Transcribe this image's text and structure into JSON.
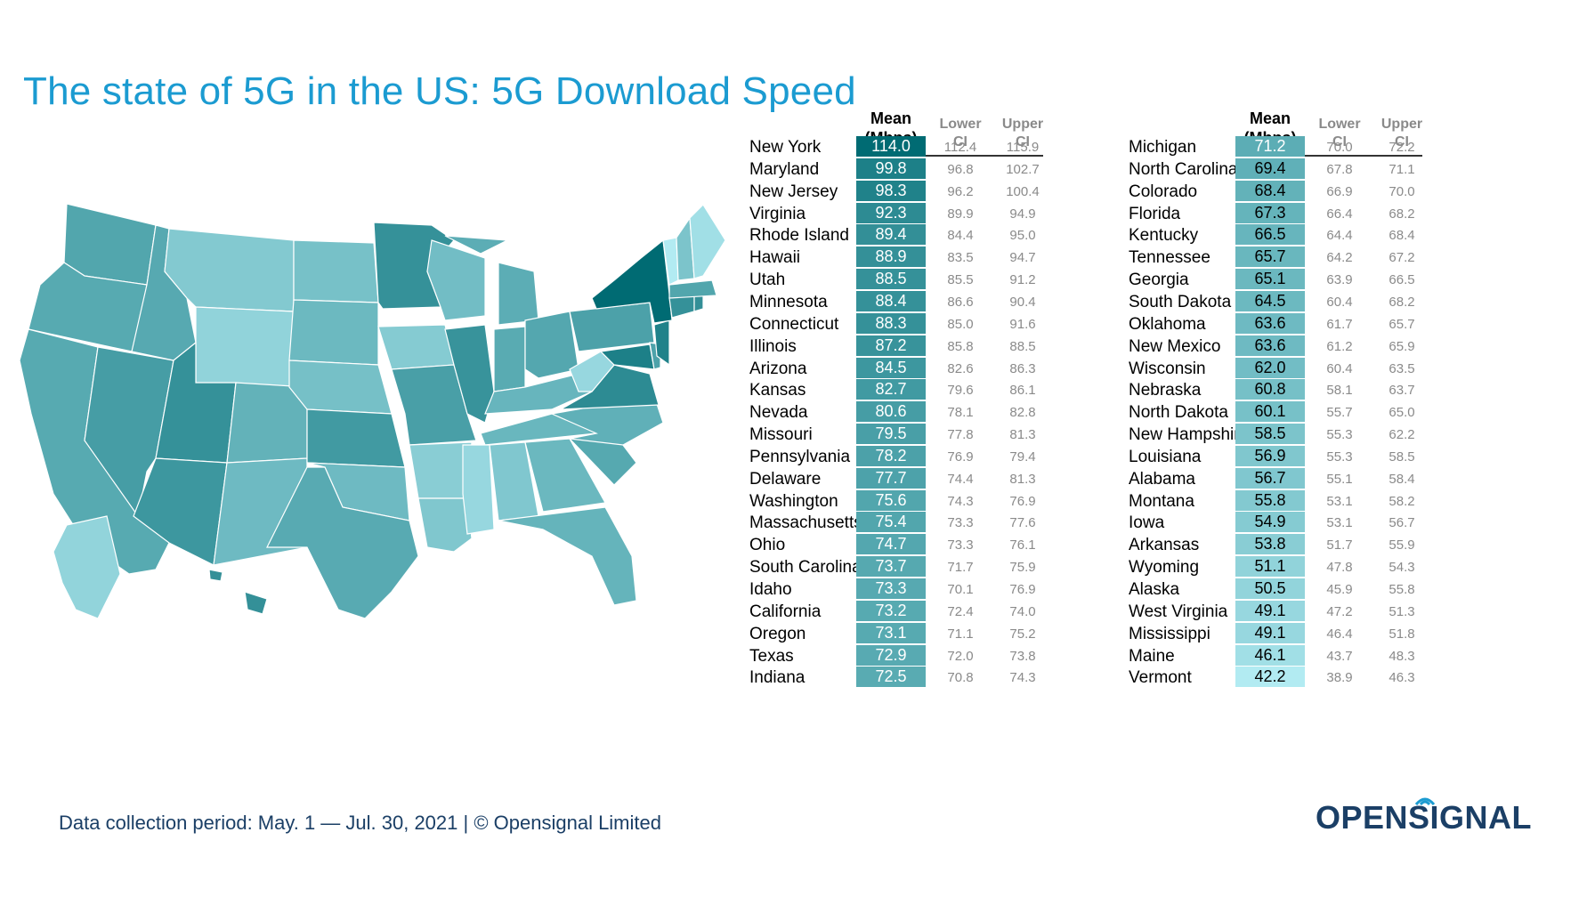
{
  "title": "The state of 5G in the US: 5G Download Speed",
  "footer": "Data collection period: May. 1 — Jul. 30, 2021 | © Opensignal Limited",
  "logo": "OPENSIGNAL",
  "headers": {
    "mean": [
      "Mean",
      "(Mbps)"
    ],
    "lower": [
      "Lower",
      "CI"
    ],
    "upper": [
      "Upper",
      "CI"
    ]
  },
  "color_scale": {
    "low": "#b2ebf2",
    "high": "#006b73",
    "text_light": "#ffffff",
    "text_dark": "#000000"
  },
  "chart_data": {
    "type": "table",
    "columns": [
      "State",
      "Mean (Mbps)",
      "Lower CI",
      "Upper CI"
    ],
    "rows": [
      {
        "state": "New York",
        "mean": "114.0",
        "lower": "112.4",
        "upper": "115.9"
      },
      {
        "state": "Maryland",
        "mean": "99.8",
        "lower": "96.8",
        "upper": "102.7"
      },
      {
        "state": "New Jersey",
        "mean": "98.3",
        "lower": "96.2",
        "upper": "100.4"
      },
      {
        "state": "Virginia",
        "mean": "92.3",
        "lower": "89.9",
        "upper": "94.9"
      },
      {
        "state": "Rhode Island",
        "mean": "89.4",
        "lower": "84.4",
        "upper": "95.0"
      },
      {
        "state": "Hawaii",
        "mean": "88.9",
        "lower": "83.5",
        "upper": "94.7"
      },
      {
        "state": "Utah",
        "mean": "88.5",
        "lower": "85.5",
        "upper": "91.2"
      },
      {
        "state": "Minnesota",
        "mean": "88.4",
        "lower": "86.6",
        "upper": "90.4"
      },
      {
        "state": "Connecticut",
        "mean": "88.3",
        "lower": "85.0",
        "upper": "91.6"
      },
      {
        "state": "Illinois",
        "mean": "87.2",
        "lower": "85.8",
        "upper": "88.5"
      },
      {
        "state": "Arizona",
        "mean": "84.5",
        "lower": "82.6",
        "upper": "86.3"
      },
      {
        "state": "Kansas",
        "mean": "82.7",
        "lower": "79.6",
        "upper": "86.1"
      },
      {
        "state": "Nevada",
        "mean": "80.6",
        "lower": "78.1",
        "upper": "82.8"
      },
      {
        "state": "Missouri",
        "mean": "79.5",
        "lower": "77.8",
        "upper": "81.3"
      },
      {
        "state": "Pennsylvania",
        "mean": "78.2",
        "lower": "76.9",
        "upper": "79.4"
      },
      {
        "state": "Delaware",
        "mean": "77.7",
        "lower": "74.4",
        "upper": "81.3"
      },
      {
        "state": "Washington",
        "mean": "75.6",
        "lower": "74.3",
        "upper": "76.9"
      },
      {
        "state": "Massachusetts",
        "mean": "75.4",
        "lower": "73.3",
        "upper": "77.6"
      },
      {
        "state": "Ohio",
        "mean": "74.7",
        "lower": "73.3",
        "upper": "76.1"
      },
      {
        "state": "South Carolina",
        "mean": "73.7",
        "lower": "71.7",
        "upper": "75.9"
      },
      {
        "state": "Idaho",
        "mean": "73.3",
        "lower": "70.1",
        "upper": "76.9"
      },
      {
        "state": "California",
        "mean": "73.2",
        "lower": "72.4",
        "upper": "74.0"
      },
      {
        "state": "Oregon",
        "mean": "73.1",
        "lower": "71.1",
        "upper": "75.2"
      },
      {
        "state": "Texas",
        "mean": "72.9",
        "lower": "72.0",
        "upper": "73.8"
      },
      {
        "state": "Indiana",
        "mean": "72.5",
        "lower": "70.8",
        "upper": "74.3"
      },
      {
        "state": "Michigan",
        "mean": "71.2",
        "lower": "70.0",
        "upper": "72.2"
      },
      {
        "state": "North Carolina",
        "mean": "69.4",
        "lower": "67.8",
        "upper": "71.1"
      },
      {
        "state": "Colorado",
        "mean": "68.4",
        "lower": "66.9",
        "upper": "70.0"
      },
      {
        "state": "Florida",
        "mean": "67.3",
        "lower": "66.4",
        "upper": "68.2"
      },
      {
        "state": "Kentucky",
        "mean": "66.5",
        "lower": "64.4",
        "upper": "68.4"
      },
      {
        "state": "Tennessee",
        "mean": "65.7",
        "lower": "64.2",
        "upper": "67.2"
      },
      {
        "state": "Georgia",
        "mean": "65.1",
        "lower": "63.9",
        "upper": "66.5"
      },
      {
        "state": "South Dakota",
        "mean": "64.5",
        "lower": "60.4",
        "upper": "68.2"
      },
      {
        "state": "Oklahoma",
        "mean": "63.6",
        "lower": "61.7",
        "upper": "65.7"
      },
      {
        "state": "New Mexico",
        "mean": "63.6",
        "lower": "61.2",
        "upper": "65.9"
      },
      {
        "state": "Wisconsin",
        "mean": "62.0",
        "lower": "60.4",
        "upper": "63.5"
      },
      {
        "state": "Nebraska",
        "mean": "60.8",
        "lower": "58.1",
        "upper": "63.7"
      },
      {
        "state": "North Dakota",
        "mean": "60.1",
        "lower": "55.7",
        "upper": "65.0"
      },
      {
        "state": "New Hampshire",
        "mean": "58.5",
        "lower": "55.3",
        "upper": "62.2"
      },
      {
        "state": "Louisiana",
        "mean": "56.9",
        "lower": "55.3",
        "upper": "58.5"
      },
      {
        "state": "Alabama",
        "mean": "56.7",
        "lower": "55.1",
        "upper": "58.4"
      },
      {
        "state": "Montana",
        "mean": "55.8",
        "lower": "53.1",
        "upper": "58.2"
      },
      {
        "state": "Iowa",
        "mean": "54.9",
        "lower": "53.1",
        "upper": "56.7"
      },
      {
        "state": "Arkansas",
        "mean": "53.8",
        "lower": "51.7",
        "upper": "55.9"
      },
      {
        "state": "Wyoming",
        "mean": "51.1",
        "lower": "47.8",
        "upper": "54.3"
      },
      {
        "state": "Alaska",
        "mean": "50.5",
        "lower": "45.9",
        "upper": "55.8"
      },
      {
        "state": "West Virginia",
        "mean": "49.1",
        "lower": "47.2",
        "upper": "51.3"
      },
      {
        "state": "Mississippi",
        "mean": "49.1",
        "lower": "46.4",
        "upper": "51.8"
      },
      {
        "state": "Maine",
        "mean": "46.1",
        "lower": "43.7",
        "upper": "48.3"
      },
      {
        "state": "Vermont",
        "mean": "42.2",
        "lower": "38.9",
        "upper": "46.3"
      }
    ]
  }
}
